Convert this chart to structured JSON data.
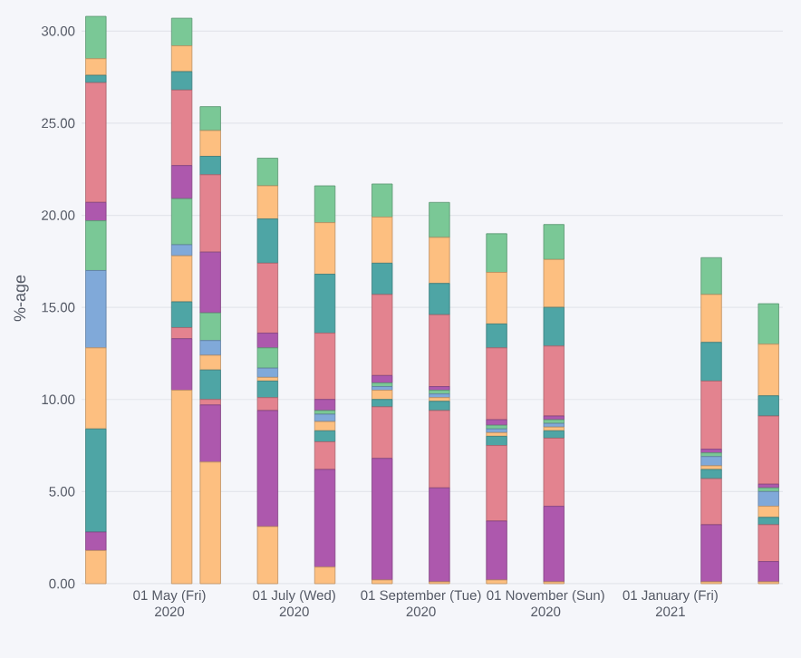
{
  "chart_data": {
    "type": "bar",
    "stacked": true,
    "ylabel": "%-age",
    "x": [
      "2020-03-26",
      "2020-05-07",
      "2020-05-21",
      "2020-06-18",
      "2020-07-16",
      "2020-08-13",
      "2020-09-10",
      "2020-10-08",
      "2020-11-05",
      "2021-01-21",
      "2021-02-18"
    ],
    "xlim": [
      "2020-03-19",
      "2021-02-25"
    ],
    "xticks": [
      {
        "value": "2020-05-01",
        "label": "01 May (Fri)\n2020"
      },
      {
        "value": "2020-07-01",
        "label": "01 July (Wed)\n2020"
      },
      {
        "value": "2020-09-01",
        "label": "01 September (Tue)\n2020"
      },
      {
        "value": "2020-11-01",
        "label": "01 November (Sun)\n2020"
      },
      {
        "value": "2021-01-01",
        "label": "01 January (Fri)\n2021"
      }
    ],
    "ylim": [
      0,
      31
    ],
    "yticks": [
      {
        "value": 0,
        "label": "0.00"
      },
      {
        "value": 5,
        "label": "5.00"
      },
      {
        "value": 10,
        "label": "10.00"
      },
      {
        "value": 15,
        "label": "15.00"
      },
      {
        "value": 20,
        "label": "20.00"
      },
      {
        "value": 25,
        "label": "25.00"
      },
      {
        "value": 30,
        "label": "30.00"
      }
    ],
    "grid": "y",
    "series": [
      {
        "color": "#fdbf80",
        "values": [
          1.8,
          10.5,
          6.6,
          3.1,
          0.9,
          0.2,
          0.1,
          0.2,
          0.1,
          0.1,
          0.1
        ]
      },
      {
        "color": "#ad58ad",
        "values": [
          1.0,
          2.8,
          3.1,
          6.3,
          5.3,
          6.6,
          5.1,
          3.2,
          4.1,
          3.1,
          1.1
        ]
      },
      {
        "color": "#e3838f",
        "values": [
          0,
          0.6,
          0.3,
          0.7,
          1.5,
          2.8,
          4.2,
          4.1,
          3.7,
          2.5,
          2.0
        ]
      },
      {
        "color": "#4ea5a5",
        "values": [
          5.6,
          1.4,
          1.6,
          0.9,
          0.6,
          0.4,
          0.5,
          0.5,
          0.4,
          0.5,
          0.4
        ]
      },
      {
        "color": "#fdbf80",
        "values": [
          4.4,
          2.5,
          0.8,
          0.2,
          0.5,
          0.5,
          0.2,
          0.2,
          0.2,
          0.2,
          0.6
        ]
      },
      {
        "color": "#80a9d9",
        "values": [
          4.2,
          0.6,
          0.8,
          0.5,
          0.4,
          0.2,
          0.2,
          0.2,
          0.2,
          0.5,
          0.8
        ]
      },
      {
        "color": "#7ac896",
        "values": [
          2.7,
          2.5,
          1.5,
          1.1,
          0.2,
          0.2,
          0.2,
          0.2,
          0.2,
          0.2,
          0.2
        ]
      },
      {
        "color": "#ad58ad",
        "values": [
          1.0,
          1.8,
          3.3,
          0.8,
          0.6,
          0.4,
          0.2,
          0.3,
          0.2,
          0.2,
          0.2
        ]
      },
      {
        "color": "#e3838f",
        "values": [
          6.5,
          4.1,
          4.2,
          3.8,
          3.6,
          4.4,
          3.9,
          3.9,
          3.8,
          3.7,
          3.7
        ]
      },
      {
        "color": "#4ea5a5",
        "values": [
          0.4,
          1.0,
          1.0,
          2.4,
          3.2,
          1.7,
          1.7,
          1.3,
          2.1,
          2.1,
          1.1
        ]
      },
      {
        "color": "#fdbf80",
        "values": [
          0.9,
          1.4,
          1.4,
          1.8,
          2.8,
          2.5,
          2.5,
          2.8,
          2.6,
          2.6,
          2.8
        ]
      },
      {
        "color": "#7ac896",
        "values": [
          2.3,
          1.5,
          1.3,
          1.5,
          2.0,
          1.8,
          1.9,
          2.1,
          1.9,
          2.0,
          2.2
        ]
      }
    ]
  }
}
